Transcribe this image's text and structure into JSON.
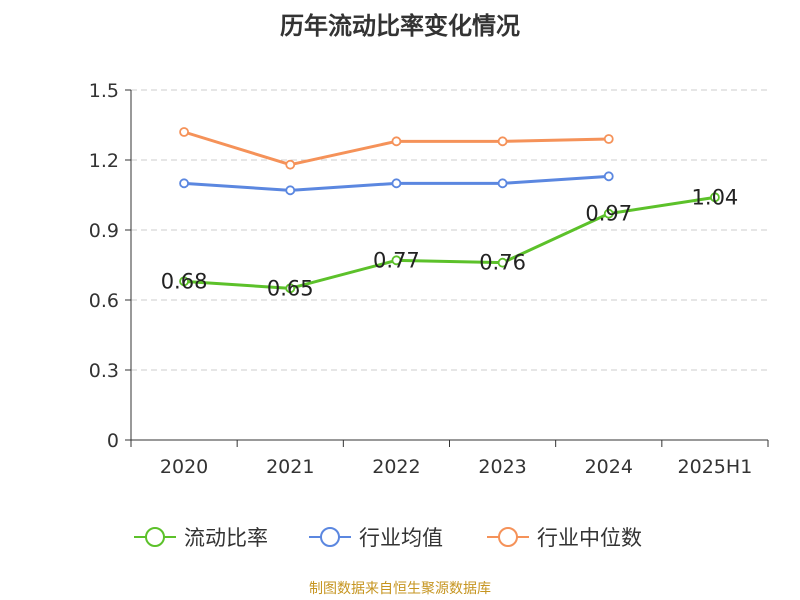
{
  "chart_data": {
    "type": "line",
    "title": "历年流动比率变化情况",
    "categories": [
      "2020",
      "2021",
      "2022",
      "2023",
      "2024",
      "2025H1"
    ],
    "yticks": [
      "0",
      "0.3",
      "0.6",
      "0.9",
      "1.2",
      "1.5"
    ],
    "ylim": [
      0,
      1.5
    ],
    "grid": true,
    "legend_position": "bottom",
    "series": [
      {
        "name": "流动比率",
        "color": "#5cc12a",
        "values": [
          0.68,
          0.65,
          0.77,
          0.76,
          0.97,
          1.04
        ],
        "labels": [
          "0.68",
          "0.65",
          "0.77",
          "0.76",
          "0.97",
          "1.04"
        ]
      },
      {
        "name": "行业均值",
        "color": "#5b87e0",
        "values": [
          1.1,
          1.07,
          1.1,
          1.1,
          1.13,
          null
        ]
      },
      {
        "name": "行业中位数",
        "color": "#f59259",
        "values": [
          1.32,
          1.18,
          1.28,
          1.28,
          1.29,
          null
        ]
      }
    ]
  },
  "source": "制图数据来自恒生聚源数据库"
}
